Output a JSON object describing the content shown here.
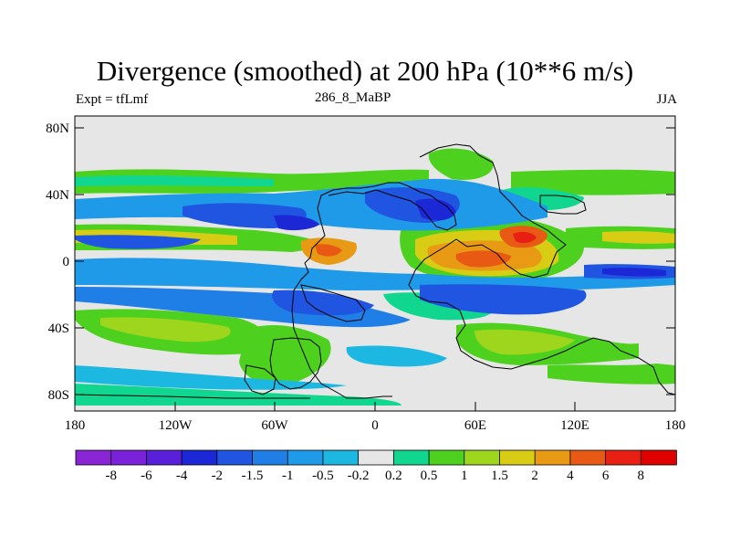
{
  "header": {
    "title": "Divergence (smoothed) at 200 hPa (10**6 m/s)",
    "left_label": "Expt = tfLmf",
    "center_label": "286_8_MaBP",
    "right_label": "JJA"
  },
  "map": {
    "y_ticks": [
      "80N",
      "40N",
      "0",
      "40S",
      "80S"
    ],
    "x_ticks": [
      "180",
      "120W",
      "60W",
      "0",
      "60E",
      "120E",
      "180"
    ],
    "background_color": "#e6e6e6"
  },
  "colorbar": {
    "labels": [
      "-8",
      "-6",
      "-4",
      "-2",
      "-1.5",
      "-1",
      "-0.5",
      "-0.2",
      "0.2",
      "0.5",
      "1",
      "1.5",
      "2",
      "4",
      "6",
      "8"
    ],
    "colors": [
      "#8a25d6",
      "#7a22d9",
      "#5a1fd9",
      "#1c28d6",
      "#1f55e0",
      "#1f7fe6",
      "#1e9ae8",
      "#1db8e2",
      "#e6e6e6",
      "#10d690",
      "#4dd11e",
      "#9ed61e",
      "#d8cc14",
      "#e89a14",
      "#e85a14",
      "#e82014",
      "#e00000"
    ]
  }
}
